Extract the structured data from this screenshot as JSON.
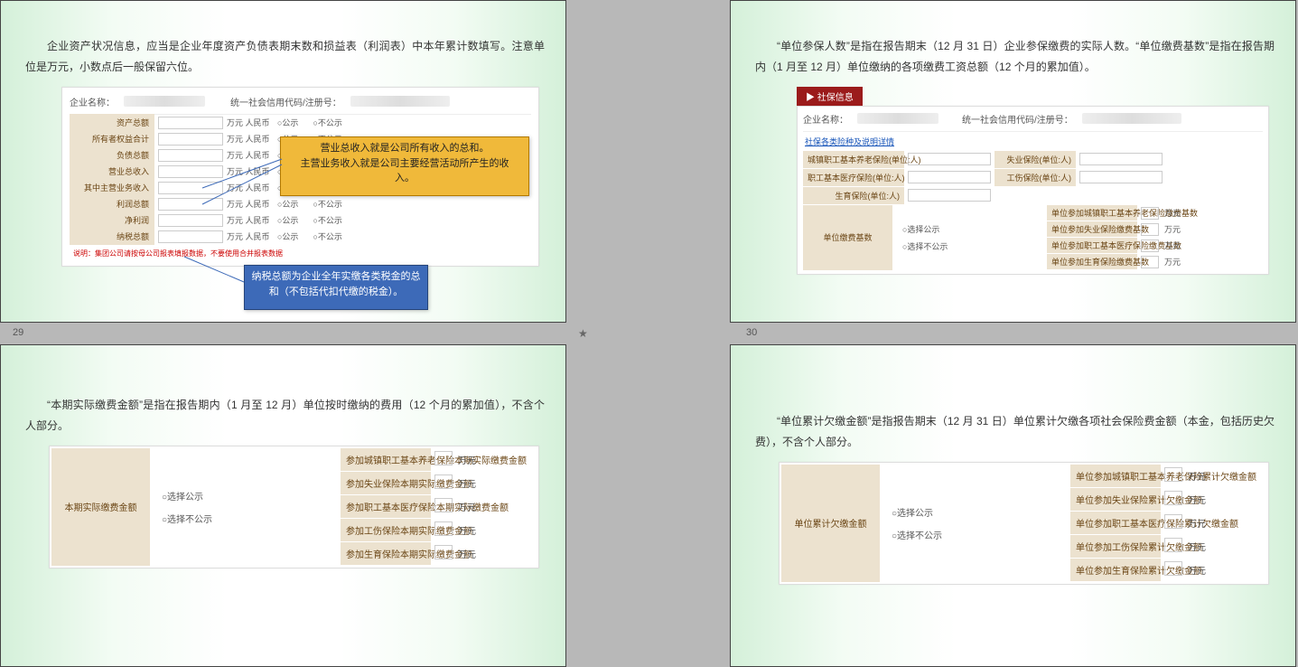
{
  "page_numbers": {
    "p29": "29",
    "p30": "30"
  },
  "colors": {
    "slide_bg_a": "#d4f0d9",
    "slide_bg_b": "#ffffff",
    "beige": "#ece2cf",
    "beige_text": "#6a4514",
    "callout_orange": "#f0b93a",
    "callout_orange_border": "#b27900",
    "callout_blue": "#3d6ab8",
    "callout_blue_border": "#26457a",
    "red_tab": "#9b1b1b",
    "link_blue": "#1553b8",
    "red_text": "#c00"
  },
  "s29": {
    "paragraph": "企业资产状况信息，应当是企业年度资产负债表期末数和损益表（利润表）中本年累计数填写。注意单位是万元，小数点后一般保留六位。",
    "header": {
      "label_company": "企业名称：",
      "label_uscc": "统一社会信用代码/注册号："
    },
    "unit_cny": "万元 人民币",
    "radio_show": "公示",
    "radio_hide": "不公示",
    "rows": [
      "资产总额",
      "所有者权益合计",
      "负债总额",
      "营业总收入",
      "其中主营业务收入",
      "利润总额",
      "净利润",
      "纳税总额"
    ],
    "red_note": "说明：集团公司请按母公司报表填报数据，不要使用合并报表数据",
    "callout_orange": "营业总收入就是公司所有收入的总和。\n主营业务收入就是公司主要经营活动所产生的收\n入。",
    "callout_blue": "纳税总额为企业全年实缴各类税金的总和（不包括代扣代缴的税金）。"
  },
  "s30": {
    "paragraph": "“单位参保人数”是指在报告期末（12 月 31 日）企业参保缴费的实际人数。“单位缴费基数”是指在报告期内（1 月至 12 月）单位缴纳的各项缴费工资总额（12 个月的累加值）。",
    "red_tab": "▶ 社保信息",
    "header": {
      "label_company": "企业名称：",
      "label_uscc": "统一社会信用代码/注册号："
    },
    "blue_link": "社保各类险种及说明详情",
    "radio_show": "选择公示",
    "radio_hide": "选择不公示",
    "count_rows": [
      {
        "l": "城镇职工基本养老保险(单位:人)",
        "r": "失业保险(单位:人)"
      },
      {
        "l": "职工基本医疗保险(单位:人)",
        "r": "工伤保险(单位:人)"
      },
      {
        "l": "生育保险(单位:人)",
        "r": ""
      }
    ],
    "base_side": "单位缴费基数",
    "base_rows": [
      "单位参加城镇职工基本养老保险缴费基数",
      "单位参加失业保险缴费基数",
      "单位参加职工基本医疗保险缴费基数",
      "单位参加生育保险缴费基数"
    ],
    "unit_wy": "万元"
  },
  "s31": {
    "paragraph": "“本期实际缴费金额”是指在报告期内（1 月至 12 月）单位按时缴纳的费用（12 个月的累加值），不含个人部分。",
    "side": "本期实际缴费金额",
    "rows": [
      "参加城镇职工基本养老保险本期实际缴费金额",
      "参加失业保险本期实际缴费金额",
      "参加职工基本医疗保险本期实际缴费金额",
      "参加工伤保险本期实际缴费金额",
      "参加生育保险本期实际缴费金额"
    ],
    "unit_wy": "万元",
    "radio_show": "选择公示",
    "radio_hide": "选择不公示"
  },
  "s32": {
    "paragraph": "“单位累计欠缴金额”是指报告期末（12 月 31 日）单位累计欠缴各项社会保险费金额（本金，包括历史欠费），不含个人部分。",
    "side": "单位累计欠缴金额",
    "rows": [
      "单位参加城镇职工基本养老保险累计欠缴金额",
      "单位参加失业保险累计欠缴金额",
      "单位参加职工基本医疗保险累计欠缴金额",
      "单位参加工伤保险累计欠缴金额",
      "单位参加生育保险累计欠缴金额"
    ],
    "unit_wy": "万元",
    "radio_show": "选择公示",
    "radio_hide": "选择不公示"
  }
}
